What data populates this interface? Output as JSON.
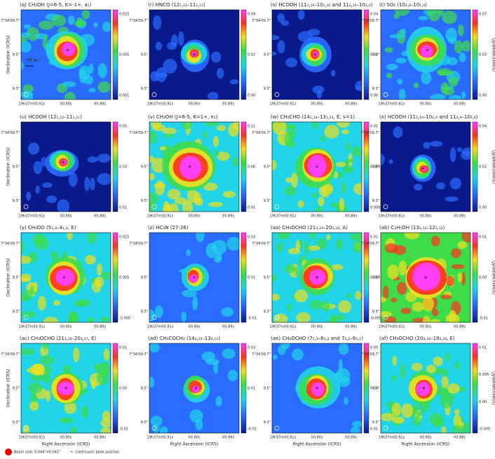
{
  "axes": {
    "yticks": [
      "7°34'09.7\"",
      "9.5\"",
      "9.3\""
    ],
    "xticks": [
      "19h37m00.91s",
      "00.90s",
      "00.89s"
    ],
    "ylabel": "Declination (ICRS)",
    "xlabel": "Right Ascension (ICRS)",
    "cbar_label": "(Jy/beam)(km/s)"
  },
  "scale_bar": "30 au",
  "panels": [
    {
      "title": "(q) CH₃OH (J=6-5, K=-1+, a₁)",
      "cbar": [
        "0.015",
        "0.005",
        "0.001"
      ]
    },
    {
      "title": "(r) HNCO (12₁,₁₂–11₁,₁₁)",
      "cbar": [
        "0.04",
        "0.02",
        "0.00"
      ]
    },
    {
      "title": "(s) HCOOH (11₁,₁₀–10₁,₁₀ and 11₂,₁₀–10₁,₉)",
      "cbar": [
        "0.04",
        "0.02",
        "0.00"
      ]
    },
    {
      "title": "(t) SO₂ (10₂,₈–10₁,₉)",
      "cbar": [
        "0.07",
        "0.03",
        "0.00"
      ]
    },
    {
      "title": "(u) HCOOH (12₁,₁₂–11₁,₁₁)",
      "cbar": [
        "0.05",
        "0.03",
        "0.01"
      ]
    },
    {
      "title": "(v) CH₃OH (J=6-5, K=1+, e₁)",
      "cbar": [
        "0.11",
        "0.06",
        "0.01"
      ]
    },
    {
      "title": "(w) CH₃CHO (14₁,₁₄–13₁,₁₃, E, v=1)",
      "cbar": [
        "0.01",
        "0.005",
        "0.000"
      ]
    },
    {
      "title": "(x) HCOOH (11₂,₁₀–10₂,₉ and 11₃,₉–10₃,₈)",
      "cbar": [
        "0.04",
        "0.02",
        "0.00"
      ]
    },
    {
      "title": "(y) CH₃OO (5₁,₄–4₁,₃, E)",
      "cbar": [
        "0.015",
        "0.005",
        "-0.005"
      ]
    },
    {
      "title": "(z) HC₃N (27-26)",
      "cbar": [
        "0.03",
        "0.01",
        "-0.01"
      ]
    },
    {
      "title": "(aa) CH₃OCHO (21₃,₁₉–20₃,₁₈, A)",
      "cbar": [
        "0.01",
        "0.005",
        "-0.005"
      ]
    },
    {
      "title": "(ab) C₂H₅OH (13₂,₁₂–12₁,₁₂)",
      "cbar": [
        "0.01",
        "0.00",
        "-0.01"
      ]
    },
    {
      "title": "(ac) CH₃OCHO (21₃,₁₈–20₃,₁₇, E)",
      "cbar": [
        "0.01",
        "0.00",
        "-0.01"
      ]
    },
    {
      "title": "(ad) CH₃COCH₃ (14₂,₁₃–13₃,₁₁)",
      "cbar": [
        "0.03",
        "0.01",
        "-0.01"
      ]
    },
    {
      "title": "(ae) CH₃OCHO (7₅,₃–6₅,₂ and 7₅,₂–6₅,₁)",
      "cbar": [
        "0.05",
        "0.03",
        "0.01"
      ]
    },
    {
      "title": "(af) CH₃OCHO (20₃,₁₈–19₃,₁₆, E)",
      "cbar": [
        "0.01",
        "0.005",
        "0.00",
        "-0.005"
      ]
    }
  ],
  "legend": {
    "beam": "Beam size: 0.044\"×0.041\"",
    "peak": "+: Continuum peak position"
  }
}
